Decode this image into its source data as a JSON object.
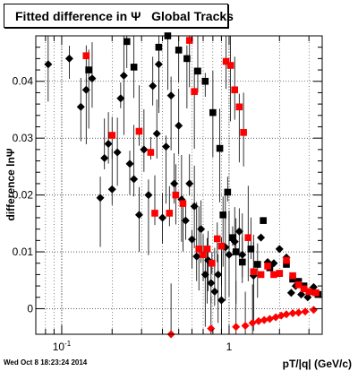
{
  "chart_data": {
    "type": "scatter",
    "title": "Fitted difference in Ψ   Global Tracks",
    "xlabel": "pT/|q| (GeV/c)",
    "ylabel": "difference lnΨ",
    "xscale": "log",
    "xlim": [
      0.07,
      3.6
    ],
    "ylim": [
      -0.0045,
      0.048
    ],
    "grid": true,
    "x_tick_labels": [
      {
        "label": "10",
        "sup": "-1",
        "value": 0.1
      },
      {
        "label": "1",
        "sup": "",
        "value": 1
      }
    ],
    "y_tick_labels": [
      "0",
      "0.01",
      "0.02",
      "0.03",
      "0.04"
    ],
    "y_tick_values": [
      0,
      0.01,
      0.02,
      0.03,
      0.04
    ],
    "series": [
      {
        "color": "#000000",
        "marker": "diamond",
        "points": [
          [
            0.083,
            0.043
          ],
          [
            0.111,
            0.044
          ],
          [
            0.13,
            0.0355
          ],
          [
            0.14,
            0.0385
          ],
          [
            0.152,
            0.0405
          ],
          [
            0.17,
            0.0195
          ],
          [
            0.18,
            0.0265
          ],
          [
            0.19,
            0.029
          ],
          [
            0.2,
            0.021
          ],
          [
            0.215,
            0.0275
          ],
          [
            0.225,
            0.037
          ],
          [
            0.235,
            0.041
          ],
          [
            0.255,
            0.0255
          ],
          [
            0.27,
            0.0228
          ],
          [
            0.29,
            0.0165
          ],
          [
            0.31,
            0.028
          ],
          [
            0.33,
            0.02
          ],
          [
            0.35,
            0.0392
          ],
          [
            0.37,
            0.0308
          ],
          [
            0.38,
            0.043
          ],
          [
            0.4,
            0.016
          ],
          [
            0.42,
            0.0285
          ],
          [
            0.45,
            0.0375
          ],
          [
            0.47,
            0.022
          ],
          [
            0.5,
            0.0322
          ],
          [
            0.52,
            0.0192
          ],
          [
            0.55,
            0.0155
          ],
          [
            0.58,
            0.022
          ],
          [
            0.6,
            0.0122
          ],
          [
            0.62,
            0.018
          ],
          [
            0.64,
            0.0092
          ],
          [
            0.68,
            0.014
          ],
          [
            0.72,
            0.006
          ],
          [
            0.75,
            0.0085
          ],
          [
            0.78,
            0.0045
          ],
          [
            0.82,
            0.003
          ],
          [
            0.86,
            0.006
          ],
          [
            0.9,
            0.0015
          ],
          [
            0.95,
            0.0108
          ],
          [
            1.0,
            0.0095
          ],
          [
            1.08,
            0.0118
          ],
          [
            1.15,
            0.0136
          ],
          [
            1.2,
            0.0095
          ],
          [
            1.4,
            0.0058
          ],
          [
            1.55,
            0.0125
          ],
          [
            1.7,
            0.0082
          ],
          [
            1.85,
            0.008
          ],
          [
            2.0,
            0.0105
          ],
          [
            2.2,
            0.009
          ],
          [
            2.35,
            0.0028
          ],
          [
            2.5,
            0.004
          ],
          [
            2.7,
            0.0025
          ],
          [
            2.95,
            0.002
          ],
          [
            3.2,
            0.0038
          ]
        ]
      },
      {
        "color": "#000000",
        "marker": "square",
        "points": [
          [
            0.145,
            0.042
          ],
          [
            0.245,
            0.047
          ],
          [
            0.27,
            0.0425
          ],
          [
            0.38,
            0.046
          ],
          [
            0.43,
            0.048
          ],
          [
            0.5,
            0.0455
          ],
          [
            0.56,
            0.044
          ],
          [
            0.65,
            0.0418
          ],
          [
            0.72,
            0.04
          ],
          [
            0.8,
            0.0345
          ],
          [
            0.88,
            0.0282
          ],
          [
            0.92,
            0.0165
          ],
          [
            0.98,
            0.0205
          ],
          [
            1.05,
            0.0125
          ],
          [
            1.1,
            0.01
          ],
          [
            1.2,
            0.0082
          ],
          [
            1.35,
            0.0105
          ],
          [
            1.48,
            0.0078
          ],
          [
            1.6,
            0.0155
          ],
          [
            1.75,
            0.0072
          ],
          [
            2.0,
            0.0062
          ],
          [
            2.2,
            0.0078
          ],
          [
            2.4,
            0.0052
          ],
          [
            2.6,
            0.0048
          ],
          [
            2.8,
            0.004
          ],
          [
            3.1,
            0.003
          ],
          [
            3.4,
            0.0025
          ]
        ]
      },
      {
        "color": "#ff0000",
        "marker": "square",
        "points": [
          [
            0.14,
            0.0445
          ],
          [
            0.2,
            0.0305
          ],
          [
            0.29,
            0.0312
          ],
          [
            0.34,
            0.0275
          ],
          [
            0.36,
            0.0168
          ],
          [
            0.44,
            0.0168
          ],
          [
            0.48,
            0.02
          ],
          [
            0.53,
            0.0185
          ],
          [
            0.58,
            0.0472
          ],
          [
            0.62,
            0.0382
          ],
          [
            0.66,
            0.0105
          ],
          [
            0.7,
            0.0095
          ],
          [
            0.74,
            0.0105
          ],
          [
            0.79,
            0.008
          ],
          [
            0.85,
            0.0123
          ],
          [
            0.9,
            0.011
          ],
          [
            0.96,
            0.0435
          ],
          [
            1.02,
            0.0428
          ],
          [
            1.08,
            0.0385
          ],
          [
            1.15,
            0.0355
          ],
          [
            1.22,
            0.031
          ],
          [
            1.3,
            0.0125
          ],
          [
            1.4,
            0.0065
          ],
          [
            1.55,
            0.006
          ],
          [
            1.7,
            0.0075
          ],
          [
            1.85,
            0.006
          ],
          [
            2.0,
            0.0062
          ],
          [
            2.2,
            0.0085
          ],
          [
            2.4,
            0.0058
          ],
          [
            2.6,
            0.0042
          ],
          [
            2.8,
            0.0035
          ],
          [
            3.0,
            0.003
          ],
          [
            3.3,
            0.0028
          ]
        ]
      },
      {
        "color": "#ff0000",
        "marker": "diamond",
        "points": [
          [
            0.45,
            -0.0045
          ],
          [
            0.78,
            -0.0035
          ],
          [
            1.1,
            -0.0032
          ],
          [
            1.25,
            -0.003
          ],
          [
            1.38,
            -0.0025
          ],
          [
            1.5,
            -0.0022
          ],
          [
            1.62,
            -0.002
          ],
          [
            1.75,
            -0.0018
          ],
          [
            1.9,
            -0.0015
          ],
          [
            2.05,
            -0.0012
          ],
          [
            2.2,
            -0.001
          ],
          [
            2.4,
            -0.0008
          ],
          [
            2.6,
            -0.0007
          ],
          [
            2.85,
            -0.0005
          ],
          [
            3.2,
            -0.0002
          ]
        ]
      }
    ]
  },
  "footer_text": "Wed Oct  8 18:23:24 2014"
}
